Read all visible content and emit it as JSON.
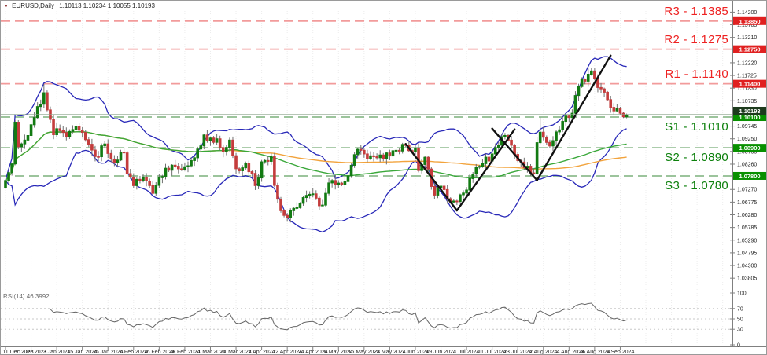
{
  "title": {
    "dropdown_icon": "▼",
    "symbol": "EURUSD,Daily",
    "ohlc": "1.10113 1.10234 1.10055 1.10193"
  },
  "colors": {
    "up": "#127a12",
    "down": "#c43c3c",
    "wick": "#707070",
    "bollinger": "#2828b8",
    "ma_fast": "#3aa83a",
    "ma_slow": "#f2a33c",
    "resistance_line": "#f29b9b",
    "resistance_text": "#ee2222",
    "support_line": "#8fbc8f",
    "support_text": "#0c800c",
    "price_line": "#8aa58a",
    "badge_resistance": "#e02020",
    "badge_support": "#089000",
    "badge_price": "#1d3b1d",
    "trend": "#111111",
    "rsi_line": "#666666",
    "grid": "#ececec",
    "axis_border": "#808080",
    "axis_text": "#222222"
  },
  "price_axis": {
    "visible_ticks": [
      "1.14200",
      "1.13705",
      "1.13210",
      "1.12220",
      "1.11725",
      "1.11230",
      "1.10735",
      "1.09745",
      "1.09250",
      "1.08755",
      "1.08260",
      "1.07270",
      "1.06775",
      "1.06280",
      "1.05785",
      "1.05290",
      "1.04795",
      "1.04300",
      "1.03805"
    ]
  },
  "date_axis": {
    "label_every_bars": 8,
    "labels": [
      "11 Dec 2023",
      "21 Dec 2023",
      "3 Jan 2024",
      "15 Jan 2024",
      "25 Jan 2024",
      "6 Feb 2024",
      "16 Feb 2024",
      "28 Feb 2024",
      "11 Mar 2024",
      "21 Mar 2024",
      "2 Apr 2024",
      "12 Apr 2024",
      "24 Apr 2024",
      "6 May 2024",
      "16 May 2024",
      "28 May 2024",
      "7 Jun 2024",
      "19 Jun 2024",
      "1 Jul 2024",
      "11 Jul 2024",
      "23 Jul 2024",
      "2 Aug 2024",
      "14 Aug 2024",
      "26 Aug 2024",
      "5 Sep 2024"
    ]
  },
  "rsi_pane": {
    "label": "RSI(14) 46.3992",
    "ticks": [
      "100",
      "70",
      "50",
      "30",
      "0"
    ],
    "guides": [
      70,
      50,
      30
    ]
  },
  "chart_data": {
    "type": "candlestick",
    "symbol": "EURUSD",
    "timeframe": "Daily",
    "bars": 195,
    "ylim": [
      1.0335,
      1.14335
    ],
    "last_ohlc": {
      "open": 1.10113,
      "high": 1.10234,
      "low": 1.10055,
      "close": 1.10193
    },
    "close_anchors": [
      [
        0,
        1.0762
      ],
      [
        1,
        1.0793
      ],
      [
        2,
        1.0827
      ],
      [
        3,
        1.099
      ],
      [
        4,
        1.0894
      ],
      [
        6,
        1.092
      ],
      [
        8,
        1.098
      ],
      [
        9,
        1.1008
      ],
      [
        11,
        1.106
      ],
      [
        12,
        1.1105
      ],
      [
        13,
        1.1038
      ],
      [
        15,
        1.0941
      ],
      [
        17,
        1.0957
      ],
      [
        19,
        1.0932
      ],
      [
        22,
        1.0973
      ],
      [
        24,
        1.095
      ],
      [
        27,
        1.0881
      ],
      [
        29,
        1.0855
      ],
      [
        31,
        1.0905
      ],
      [
        33,
        1.0846
      ],
      [
        35,
        1.0842
      ],
      [
        37,
        1.087
      ],
      [
        38,
        1.0789
      ],
      [
        40,
        1.0742
      ],
      [
        43,
        1.0775
      ],
      [
        46,
        1.0712
      ],
      [
        48,
        1.0773
      ],
      [
        50,
        1.081
      ],
      [
        52,
        1.0822
      ],
      [
        55,
        1.0805
      ],
      [
        58,
        1.084
      ],
      [
        60,
        1.0885
      ],
      [
        62,
        1.094
      ],
      [
        64,
        1.0928
      ],
      [
        66,
        1.0925
      ],
      [
        68,
        1.0875
      ],
      [
        70,
        1.092
      ],
      [
        71,
        1.0859
      ],
      [
        72,
        1.0808
      ],
      [
        75,
        1.0828
      ],
      [
        77,
        1.079
      ],
      [
        78,
        1.0742
      ],
      [
        80,
        1.0835
      ],
      [
        83,
        1.0857
      ],
      [
        84,
        1.0743
      ],
      [
        86,
        1.0644
      ],
      [
        88,
        1.0618
      ],
      [
        91,
        1.0656
      ],
      [
        94,
        1.0704
      ],
      [
        97,
        1.0693
      ],
      [
        99,
        1.0666
      ],
      [
        100,
        1.0712
      ],
      [
        102,
        1.0762
      ],
      [
        105,
        1.0747
      ],
      [
        107,
        1.078
      ],
      [
        110,
        1.0884
      ],
      [
        112,
        1.0866
      ],
      [
        115,
        1.0855
      ],
      [
        118,
        1.0846
      ],
      [
        120,
        1.0858
      ],
      [
        122,
        1.088
      ],
      [
        124,
        1.0903
      ],
      [
        126,
        1.0879
      ],
      [
        128,
        1.0889
      ],
      [
        129,
        1.0801
      ],
      [
        131,
        1.0853
      ],
      [
        132,
        1.0807
      ],
      [
        134,
        1.0705
      ],
      [
        136,
        1.074
      ],
      [
        138,
        1.0691
      ],
      [
        141,
        1.068
      ],
      [
        143,
        1.0713
      ],
      [
        146,
        1.0787
      ],
      [
        149,
        1.0828
      ],
      [
        152,
        1.0866
      ],
      [
        154,
        1.09
      ],
      [
        156,
        1.0938
      ],
      [
        158,
        1.09
      ],
      [
        160,
        1.084
      ],
      [
        163,
        1.0818
      ],
      [
        165,
        1.0789
      ],
      [
        166,
        1.091
      ],
      [
        167,
        1.0951
      ],
      [
        169,
        1.0911
      ],
      [
        171,
        1.0918
      ],
      [
        173,
        1.096
      ],
      [
        174,
        1.0993
      ],
      [
        175,
        1.1014
      ],
      [
        177,
        1.1025
      ],
      [
        179,
        1.1129
      ],
      [
        181,
        1.115
      ],
      [
        183,
        1.119
      ],
      [
        184,
        1.1161
      ],
      [
        186,
        1.112
      ],
      [
        188,
        1.1078
      ],
      [
        189,
        1.1048
      ],
      [
        190,
        1.1034
      ],
      [
        191,
        1.1043
      ],
      [
        192,
        1.1025
      ],
      [
        193,
        1.1011
      ],
      [
        194,
        1.10193
      ]
    ],
    "wick_overrides": [
      [
        12,
        "h",
        1.1139
      ],
      [
        88,
        "l",
        1.0601
      ],
      [
        99,
        "l",
        1.0666
      ],
      [
        141,
        "l",
        1.0666
      ],
      [
        156,
        "h",
        1.0948
      ],
      [
        167,
        "h",
        1.1009
      ],
      [
        183,
        "h",
        1.1201
      ]
    ],
    "levels": {
      "resistance": [
        {
          "name": "R3",
          "price": 1.1385,
          "label": "R3 - 1.1385",
          "badge": "1.13850"
        },
        {
          "name": "R2",
          "price": 1.1275,
          "label": "R2 - 1.1275",
          "badge": "1.12750"
        },
        {
          "name": "R1",
          "price": 1.114,
          "label": "R1 - 1.1140",
          "badge": "1.11400"
        }
      ],
      "support": [
        {
          "name": "S1",
          "price": 1.101,
          "label": "S1 - 1.1010",
          "badge": "1.10100"
        },
        {
          "name": "S2",
          "price": 1.089,
          "label": "S2 - 1.0890",
          "badge": "1.08900"
        },
        {
          "name": "S3",
          "price": 1.078,
          "label": "S3 - 1.0780",
          "badge": "1.07800"
        }
      ],
      "current_price": {
        "price": 1.10193,
        "badge": "1.10193"
      }
    },
    "trendlines": [
      {
        "from_bar": 125,
        "from_price": 1.0905,
        "to_bar": 141,
        "to_price": 1.0645
      },
      {
        "from_bar": 141,
        "from_price": 1.0645,
        "to_bar": 159,
        "to_price": 1.0962
      },
      {
        "from_bar": 152,
        "from_price": 1.0965,
        "to_bar": 166,
        "to_price": 1.0763
      },
      {
        "from_bar": 166,
        "from_price": 1.0763,
        "to_bar": 189,
        "to_price": 1.125
      }
    ],
    "indicators": {
      "bollinger_period": 20,
      "bollinger_dev": 2,
      "ma_fast_period": 70,
      "ma_slow_period": 140,
      "rsi_period": 14,
      "rsi_value": 46.3992
    }
  }
}
